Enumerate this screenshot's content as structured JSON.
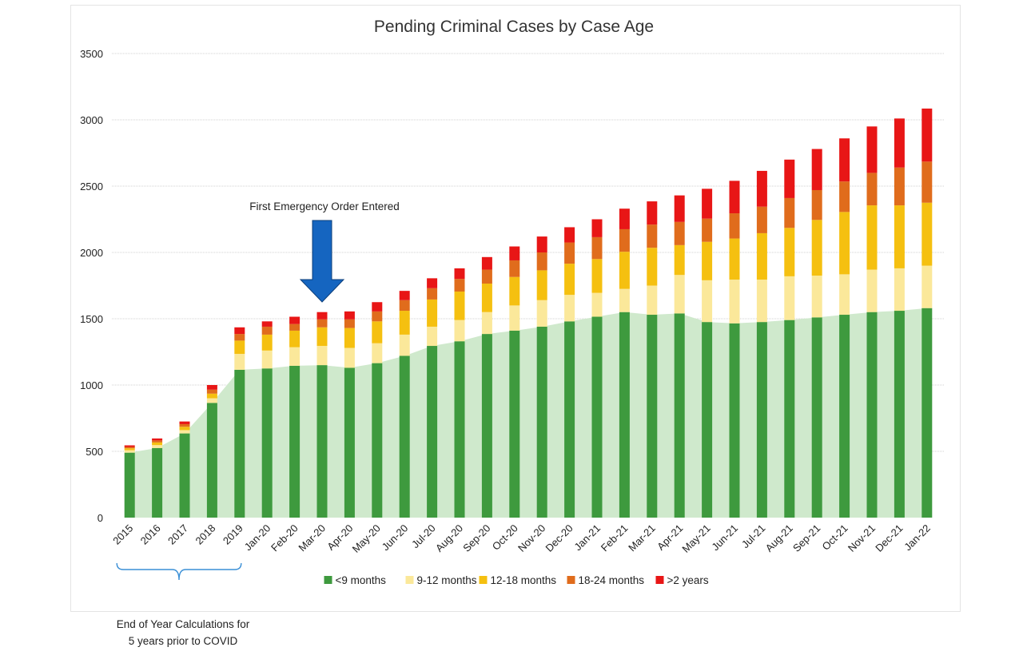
{
  "chart_data": {
    "type": "bar",
    "stacked": true,
    "title": "Pending Criminal Cases by Case Age",
    "xlabel": "",
    "ylabel": "",
    "ylim": [
      0,
      3500
    ],
    "yticks": [
      0,
      500,
      1000,
      1500,
      2000,
      2500,
      3000,
      3500
    ],
    "grid": true,
    "legend_position": "bottom",
    "categories": [
      "2015",
      "2016",
      "2017",
      "2018",
      "2019",
      "Jan-20",
      "Feb-20",
      "Mar-20",
      "Apr-20",
      "May-20",
      "Jun-20",
      "Jul-20",
      "Aug-20",
      "Sep-20",
      "Oct-20",
      "Nov-20",
      "Dec-20",
      "Jan-21",
      "Feb-21",
      "Mar-21",
      "Apr-21",
      "May-21",
      "Jun-21",
      "Jul-21",
      "Aug-21",
      "Sep-21",
      "Oct-21",
      "Nov-21",
      "Dec-21",
      "Jan-22"
    ],
    "series": [
      {
        "name": "<9 months",
        "color": "#3e9a3e",
        "values": [
          490,
          525,
          635,
          865,
          1115,
          1125,
          1145,
          1150,
          1130,
          1165,
          1220,
          1295,
          1330,
          1385,
          1410,
          1440,
          1480,
          1515,
          1550,
          1530,
          1540,
          1475,
          1465,
          1475,
          1490,
          1510,
          1530,
          1550,
          1560,
          1580
        ]
      },
      {
        "name": "9-12 months",
        "color": "#fbe89a",
        "values": [
          18,
          22,
          25,
          35,
          120,
          135,
          140,
          145,
          150,
          150,
          160,
          145,
          160,
          165,
          190,
          200,
          200,
          180,
          175,
          220,
          290,
          315,
          330,
          320,
          330,
          315,
          305,
          320,
          320,
          320
        ]
      },
      {
        "name": "12-18 months",
        "color": "#f5c010",
        "values": [
          15,
          20,
          25,
          35,
          100,
          120,
          125,
          140,
          150,
          165,
          180,
          205,
          215,
          215,
          215,
          225,
          235,
          255,
          280,
          285,
          225,
          290,
          310,
          350,
          365,
          420,
          470,
          485,
          475,
          475
        ]
      },
      {
        "name": "18-24 months",
        "color": "#e06c1c",
        "values": [
          10,
          15,
          20,
          30,
          50,
          60,
          50,
          60,
          65,
          75,
          80,
          85,
          95,
          105,
          125,
          135,
          160,
          165,
          170,
          175,
          175,
          175,
          190,
          200,
          225,
          225,
          230,
          245,
          285,
          310
        ]
      },
      {
        "name": ">2 years",
        "color": "#e81616",
        "values": [
          12,
          15,
          20,
          35,
          50,
          40,
          55,
          55,
          60,
          70,
          70,
          75,
          80,
          95,
          105,
          120,
          115,
          135,
          155,
          175,
          200,
          225,
          245,
          270,
          290,
          310,
          325,
          350,
          370,
          400
        ]
      }
    ],
    "annotations": [
      {
        "text": "First Emergency Order Entered",
        "category": "Mar-20"
      }
    ],
    "footnote": {
      "lines": [
        "End of Year Calculations for",
        "5 years prior to COVID"
      ],
      "spans": [
        "2015",
        "2019"
      ]
    },
    "colors": {
      "area_fill": "#cfe9cc",
      "arrow": "#1565c0",
      "brace": "#3a8fd6",
      "grid": "#d0d0d0"
    }
  }
}
